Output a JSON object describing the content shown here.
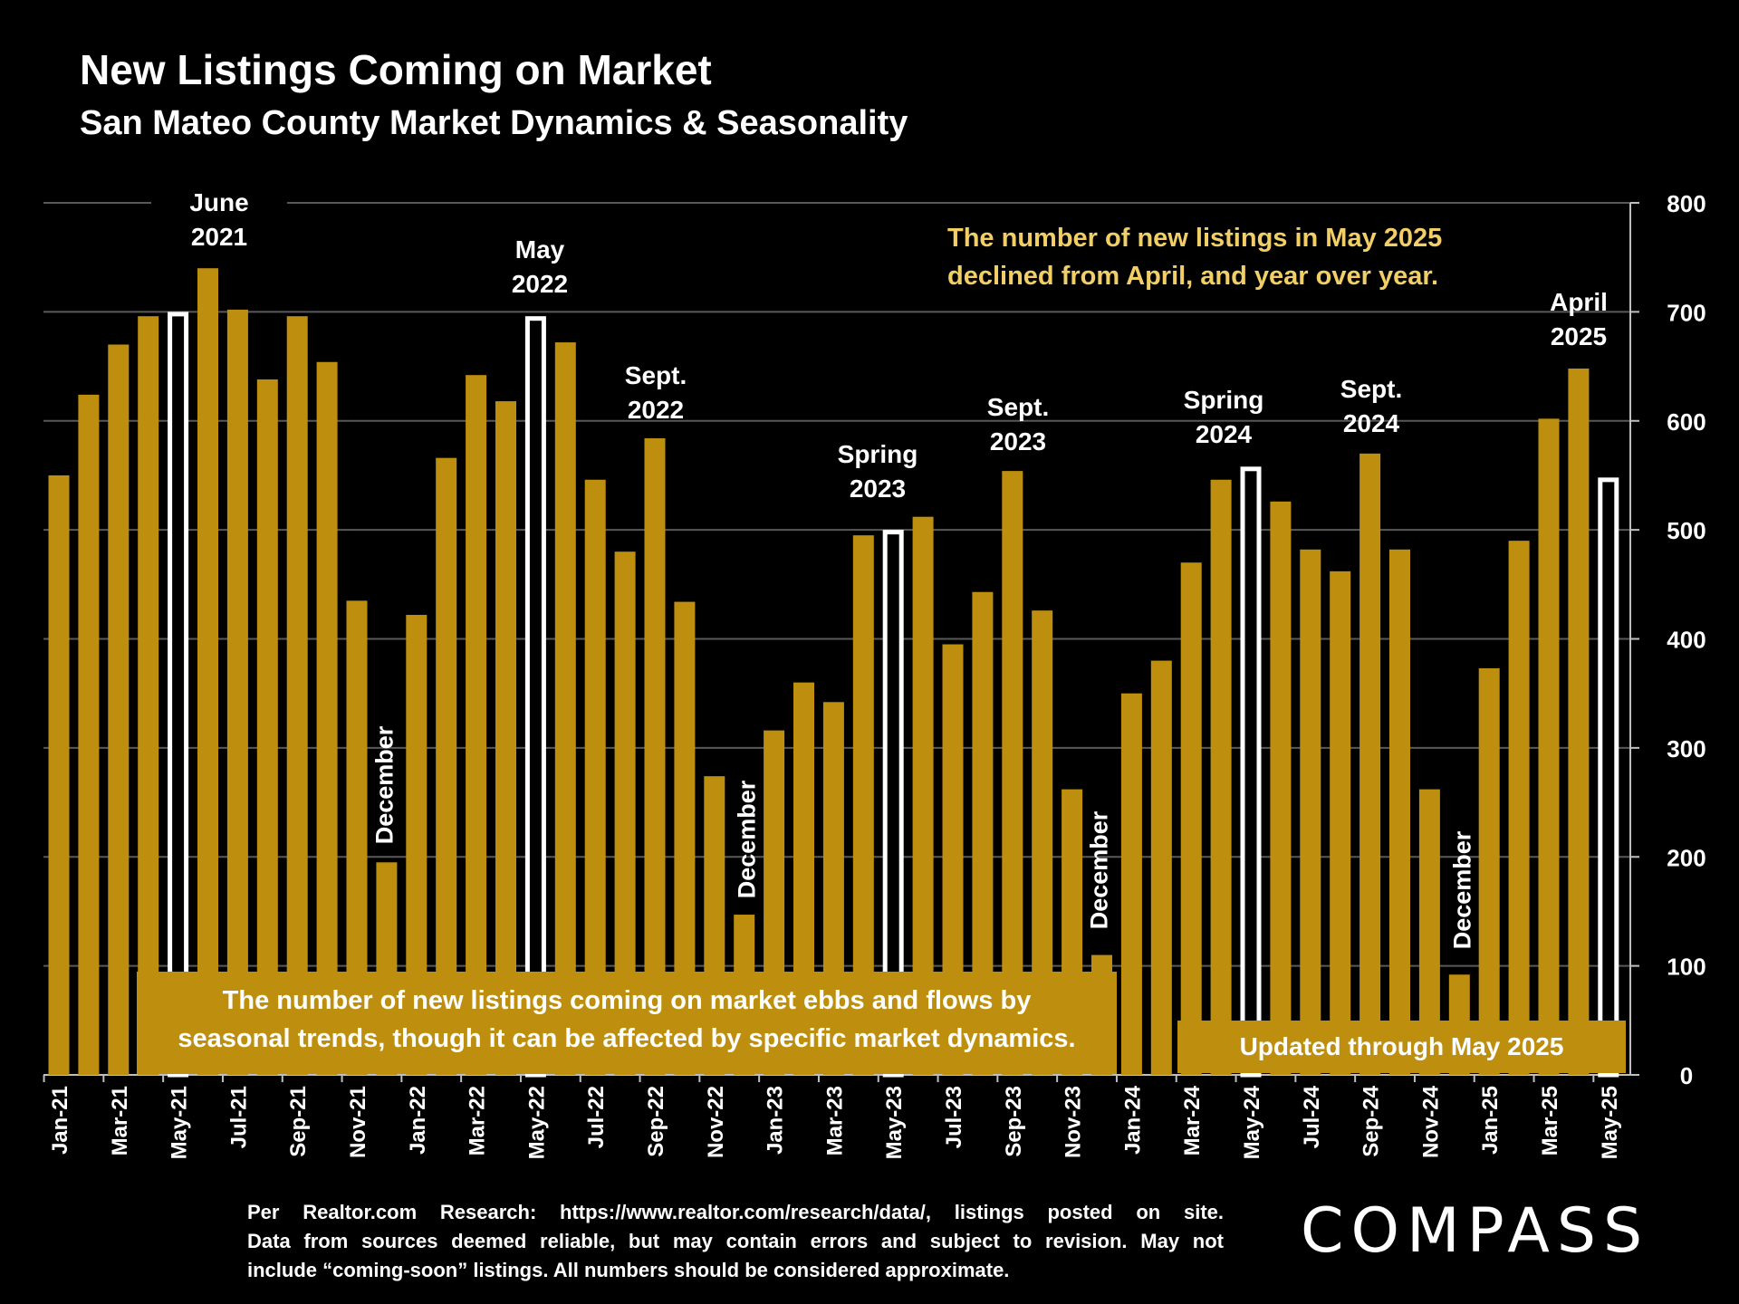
{
  "header": {
    "title": "New Listings Coming on Market",
    "subtitle": "San Mateo County Market Dynamics & Seasonality"
  },
  "notes": {
    "top_line1": "The number of new listings in May 2025",
    "top_line2": "declined from April, and year over year.",
    "bottom_line1": "The number of new listings coming on market ebbs and flows by",
    "bottom_line2": "seasonal trends, though it can be affected by specific market dynamics.",
    "updated": "Updated through May 2025"
  },
  "annotations": {
    "june2021_1": "June",
    "june2021_2": "2021",
    "may2022_1": "May",
    "may2022_2": "2022",
    "sept2022_1": "Sept.",
    "sept2022_2": "2022",
    "spring2023_1": "Spring",
    "spring2023_2": "2023",
    "sept2023_1": "Sept.",
    "sept2023_2": "2023",
    "spring2024_1": "Spring",
    "spring2024_2": "2024",
    "sept2024_1": "Sept.",
    "sept2024_2": "2024",
    "april2025_1": "April",
    "april2025_2": "2025",
    "december": "December"
  },
  "footnote": {
    "line1": "Per Realtor.com Research:  https://www.realtor.com/research/data/, listings posted on site.",
    "line2": "Data from sources deemed reliable, but may contain errors and subject to revision. May not",
    "line3": "include “coming-soon” listings. All numbers should be considered approximate."
  },
  "logo": "COMPASS",
  "colors": {
    "bar": "#be8f0e",
    "highlight_outline": "#ffffff",
    "note_text": "#f2cf66",
    "background": "#000000"
  },
  "chart_data": {
    "type": "bar",
    "ylim": [
      0,
      800
    ],
    "y_ticks": [
      0,
      100,
      200,
      300,
      400,
      500,
      600,
      700,
      800
    ],
    "y_axis_side": "right",
    "grid": true,
    "categories": [
      "Jan-21",
      "Feb-21",
      "Mar-21",
      "Apr-21",
      "May-21",
      "Jun-21",
      "Jul-21",
      "Aug-21",
      "Sep-21",
      "Oct-21",
      "Nov-21",
      "Dec-21",
      "Jan-22",
      "Feb-22",
      "Mar-22",
      "Apr-22",
      "May-22",
      "Jun-22",
      "Jul-22",
      "Aug-22",
      "Sep-22",
      "Oct-22",
      "Nov-22",
      "Dec-22",
      "Jan-23",
      "Feb-23",
      "Mar-23",
      "Apr-23",
      "May-23",
      "Jun-23",
      "Jul-23",
      "Aug-23",
      "Sep-23",
      "Oct-23",
      "Nov-23",
      "Dec-23",
      "Jan-24",
      "Feb-24",
      "Mar-24",
      "Apr-24",
      "May-24",
      "Jun-24",
      "Jul-24",
      "Aug-24",
      "Sep-24",
      "Oct-24",
      "Nov-24",
      "Dec-24",
      "Jan-25",
      "Feb-25",
      "Mar-25",
      "Apr-25",
      "May-25"
    ],
    "x_tick_labels": [
      "Jan-21",
      "Mar-21",
      "May-21",
      "Jul-21",
      "Sep-21",
      "Nov-21",
      "Jan-22",
      "Mar-22",
      "May-22",
      "Jul-22",
      "Sep-22",
      "Nov-22",
      "Jan-23",
      "Mar-23",
      "May-23",
      "Jul-23",
      "Sep-23",
      "Nov-23",
      "Jan-24",
      "Mar-24",
      "May-24",
      "Jul-24",
      "Sep-24",
      "Nov-24",
      "Jan-25",
      "Mar-25",
      "May-25"
    ],
    "values": [
      550,
      624,
      670,
      696,
      700,
      740,
      702,
      638,
      696,
      654,
      435,
      195,
      422,
      566,
      642,
      618,
      696,
      672,
      546,
      480,
      584,
      434,
      274,
      147,
      316,
      360,
      342,
      495,
      500,
      512,
      395,
      443,
      554,
      426,
      262,
      110,
      350,
      380,
      470,
      546,
      558,
      526,
      482,
      462,
      570,
      482,
      262,
      92,
      373,
      490,
      602,
      648,
      548
    ],
    "highlighted": [
      "May-21",
      "May-22",
      "May-23",
      "May-24",
      "May-25"
    ]
  }
}
